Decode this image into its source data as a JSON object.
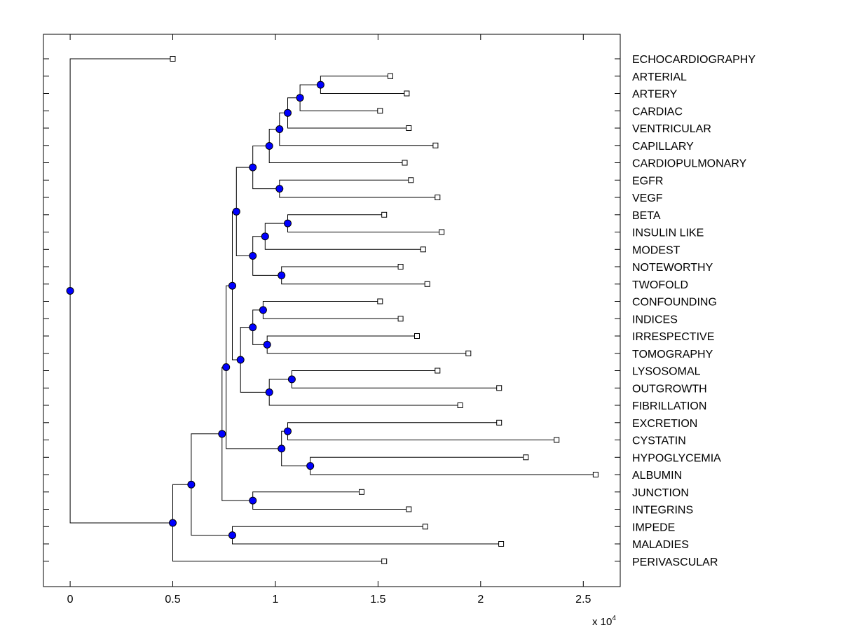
{
  "chart_data": {
    "type": "dendrogram",
    "orientation": "left-to-right",
    "xlim": [
      -0.13,
      2.68
    ],
    "xticks": [
      0,
      0.5,
      1,
      1.5,
      2,
      2.5
    ],
    "xtick_labels": [
      "0",
      "0.5",
      "1",
      "1.5",
      "2",
      "2.5"
    ],
    "x_multiplier_base": "x 10",
    "x_multiplier_exp": "4",
    "node_color": "#0000ff",
    "labels": [
      "ECHOCARDIOGRAPHY",
      "ARTERIAL",
      "ARTERY",
      "CARDIAC",
      "VENTRICULAR",
      "CAPILLARY",
      "CARDIOPULMONARY",
      "EGFR",
      "VEGF",
      "BETA",
      "INSULIN LIKE",
      "MODEST",
      "NOTEWORTHY",
      "TWOFOLD",
      "CONFOUNDING",
      "INDICES",
      "IRRESPECTIVE",
      "TOMOGRAPHY",
      "LYSOSOMAL",
      "OUTGROWTH",
      "FIBRILLATION",
      "EXCRETION",
      "CYSTATIN",
      "HYPOGLYCEMIA",
      "ALBUMIN",
      "JUNCTION",
      "INTEGRINS",
      "IMPEDE",
      "MALADIES",
      "PERIVASCULAR"
    ],
    "leaf_values": [
      0.5,
      1.56,
      1.64,
      1.51,
      1.65,
      1.78,
      1.63,
      1.66,
      1.79,
      1.53,
      1.81,
      1.72,
      1.61,
      1.74,
      1.51,
      1.61,
      1.69,
      1.94,
      1.79,
      2.09,
      1.9,
      2.09,
      2.37,
      2.22,
      2.56,
      1.42,
      1.65,
      1.73,
      2.1,
      1.53
    ],
    "tree": {
      "v": 0.0,
      "c": [
        0,
        {
          "v": 0.5,
          "c": [
            {
              "v": 0.59,
              "c": [
                {
                  "v": 0.74,
                  "c": [
                    {
                      "v": 0.76,
                      "c": [
                        {
                          "v": 0.79,
                          "c": [
                            {
                              "v": 0.81,
                              "c": [
                                {
                                  "v": 0.89,
                                  "c": [
                                    {
                                      "v": 0.97,
                                      "c": [
                                        {
                                          "v": 1.02,
                                          "c": [
                                            {
                                              "v": 1.06,
                                              "c": [
                                                {
                                                  "v": 1.12,
                                                  "c": [
                                                    {
                                                      "v": 1.22,
                                                      "c": [
                                                        1,
                                                        2
                                                      ]
                                                    },
                                                    3
                                                  ]
                                                },
                                                4
                                              ]
                                            },
                                            5
                                          ]
                                        },
                                        6
                                      ]
                                    },
                                    {
                                      "v": 1.02,
                                      "c": [
                                        7,
                                        8
                                      ]
                                    }
                                  ]
                                },
                                {
                                  "v": 0.89,
                                  "c": [
                                    {
                                      "v": 0.95,
                                      "c": [
                                        {
                                          "v": 1.06,
                                          "c": [
                                            9,
                                            10
                                          ]
                                        },
                                        11
                                      ]
                                    },
                                    {
                                      "v": 1.03,
                                      "c": [
                                        12,
                                        13
                                      ]
                                    }
                                  ]
                                }
                              ]
                            },
                            {
                              "v": 0.83,
                              "c": [
                                {
                                  "v": 0.89,
                                  "c": [
                                    {
                                      "v": 0.94,
                                      "c": [
                                        14,
                                        15
                                      ]
                                    },
                                    {
                                      "v": 0.96,
                                      "c": [
                                        16,
                                        17
                                      ]
                                    }
                                  ]
                                },
                                {
                                  "v": 0.97,
                                  "c": [
                                    {
                                      "v": 1.08,
                                      "c": [
                                        18,
                                        19
                                      ]
                                    },
                                    20
                                  ]
                                }
                              ]
                            }
                          ]
                        },
                        {
                          "v": 1.03,
                          "c": [
                            {
                              "v": 1.06,
                              "c": [
                                21,
                                22
                              ]
                            },
                            {
                              "v": 1.17,
                              "c": [
                                23,
                                24
                              ]
                            }
                          ]
                        }
                      ]
                    },
                    {
                      "v": 0.89,
                      "c": [
                        25,
                        26
                      ]
                    }
                  ]
                },
                {
                  "v": 0.79,
                  "c": [
                    27,
                    28
                  ]
                }
              ]
            },
            29
          ]
        }
      ]
    }
  }
}
